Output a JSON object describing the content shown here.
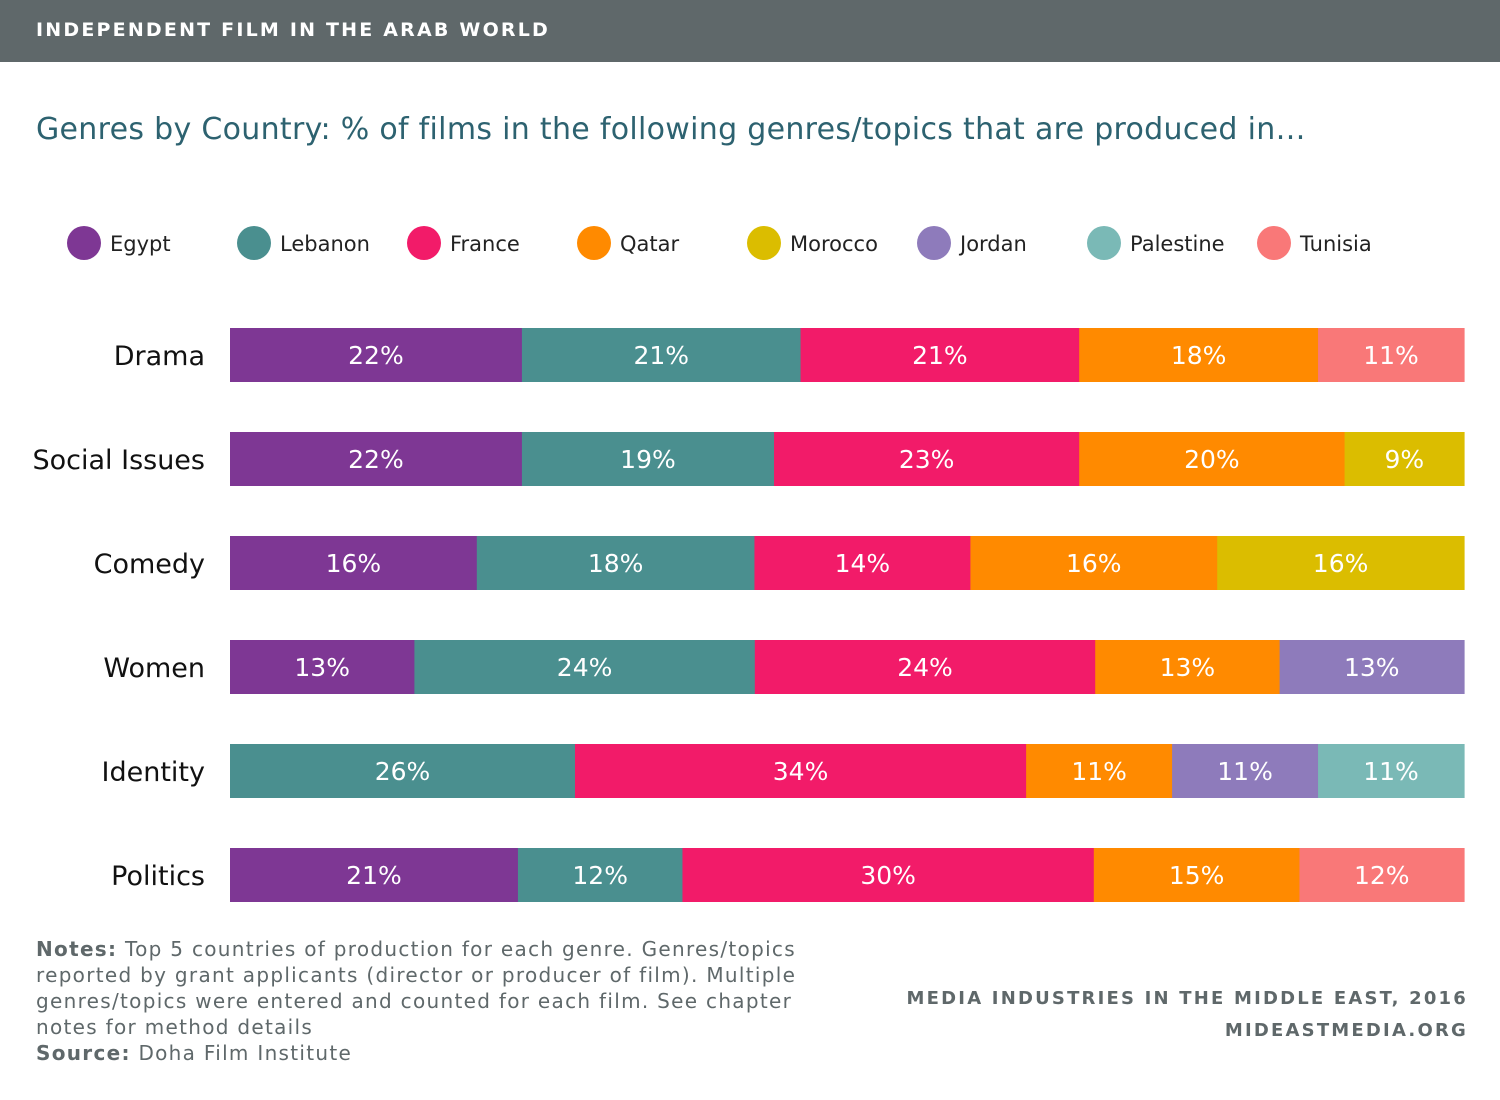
{
  "header": {
    "title": "INDEPENDENT FILM IN THE ARAB WORLD"
  },
  "footer": {
    "notes_label": "Notes:",
    "notes_text": "Top 5 countries of production for each genre. Genres/topics reported by grant applicants (director or producer of film). Multiple genres/topics were entered and counted for each film. See chapter notes for method details",
    "source_label": "Source:",
    "source_text": "Doha Film Institute",
    "credit_line1": "MEDIA INDUSTRIES IN THE MIDDLE EAST, 2016",
    "credit_line2": "MIDEASTMEDIA.ORG"
  },
  "chart_data": {
    "type": "bar",
    "orientation": "horizontal",
    "stacked": true,
    "title": "Genres by Country: % of films in the following genres/topics that are produced in…",
    "categories": [
      "Drama",
      "Social Issues",
      "Comedy",
      "Women",
      "Identity",
      "Politics"
    ],
    "series": [
      {
        "name": "Egypt",
        "color": "#7e3794",
        "values": [
          22,
          22,
          16,
          13,
          null,
          21
        ]
      },
      {
        "name": "Lebanon",
        "color": "#4a8f8f",
        "values": [
          21,
          19,
          18,
          24,
          26,
          12
        ]
      },
      {
        "name": "France",
        "color": "#f21b69",
        "values": [
          21,
          23,
          14,
          24,
          34,
          30
        ]
      },
      {
        "name": "Qatar",
        "color": "#ff8a00",
        "values": [
          18,
          20,
          16,
          13,
          11,
          15
        ]
      },
      {
        "name": "Morocco",
        "color": "#dbbd00",
        "values": [
          null,
          9,
          16,
          null,
          null,
          null
        ]
      },
      {
        "name": "Jordan",
        "color": "#8e7bbb",
        "values": [
          null,
          null,
          null,
          13,
          11,
          null
        ]
      },
      {
        "name": "Palestine",
        "color": "#7ab9b6",
        "values": [
          null,
          null,
          null,
          null,
          11,
          null
        ]
      },
      {
        "name": "Tunisia",
        "color": "#f97878",
        "values": [
          11,
          null,
          null,
          null,
          null,
          12
        ]
      }
    ],
    "value_suffix": "%",
    "legend_position": "top",
    "grid": false
  }
}
